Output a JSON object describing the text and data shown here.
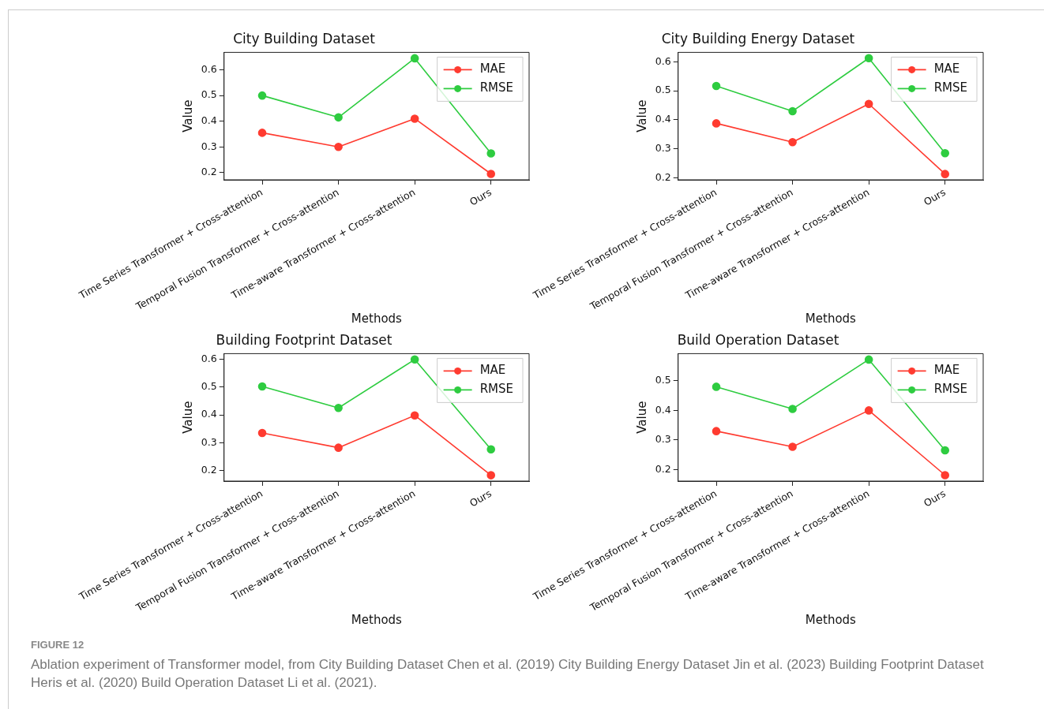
{
  "chart_data": [
    {
      "type": "line",
      "title": "City Building Dataset",
      "xlabel": "Methods",
      "ylabel": "Value",
      "categories": [
        "Time Series Transformer + Cross-attention",
        "Temporal Fusion Transformer + Cross-attention",
        "Time-aware Transformer + Cross-attention",
        "Ours"
      ],
      "series": [
        {
          "name": "MAE",
          "color": "#ff3b30",
          "values": [
            0.355,
            0.3,
            0.41,
            0.195
          ]
        },
        {
          "name": "RMSE",
          "color": "#2ecc40",
          "values": [
            0.5,
            0.415,
            0.645,
            0.275
          ]
        }
      ],
      "ylim": [
        0.172,
        0.668
      ],
      "yticks": [
        0.2,
        0.3,
        0.4,
        0.5,
        0.6
      ],
      "legend": "top right",
      "marker": "circle",
      "line_style": "solid"
    },
    {
      "type": "line",
      "title": "City Building Energy Dataset",
      "xlabel": "Methods",
      "ylabel": "Value",
      "categories": [
        "Time Series Transformer + Cross-attention",
        "Temporal Fusion Transformer + Cross-attention",
        "Time-aware Transformer + Cross-attention",
        "Ours"
      ],
      "series": [
        {
          "name": "MAE",
          "color": "#ff3b30",
          "values": [
            0.388,
            0.323,
            0.455,
            0.213
          ]
        },
        {
          "name": "RMSE",
          "color": "#2ecc40",
          "values": [
            0.517,
            0.43,
            0.613,
            0.285
          ]
        }
      ],
      "ylim": [
        0.193,
        0.633
      ],
      "yticks": [
        0.2,
        0.3,
        0.4,
        0.5,
        0.6
      ],
      "legend": "top right",
      "marker": "circle",
      "line_style": "solid"
    },
    {
      "type": "line",
      "title": "Building Footprint Dataset",
      "xlabel": "Methods",
      "ylabel": "Value",
      "categories": [
        "Time Series Transformer + Cross-attention",
        "Temporal Fusion Transformer + Cross-attention",
        "Time-aware Transformer + Cross-attention",
        "Ours"
      ],
      "series": [
        {
          "name": "MAE",
          "color": "#ff3b30",
          "values": [
            0.335,
            0.282,
            0.398,
            0.183
          ]
        },
        {
          "name": "RMSE",
          "color": "#2ecc40",
          "values": [
            0.502,
            0.425,
            0.599,
            0.276
          ]
        }
      ],
      "ylim": [
        0.162,
        0.62
      ],
      "yticks": [
        0.2,
        0.3,
        0.4,
        0.5,
        0.6
      ],
      "legend": "top right",
      "marker": "circle",
      "line_style": "solid"
    },
    {
      "type": "line",
      "title": "Build Operation Dataset",
      "xlabel": "Methods",
      "ylabel": "Value",
      "categories": [
        "Time Series Transformer + Cross-attention",
        "Temporal Fusion Transformer + Cross-attention",
        "Time-aware Transformer + Cross-attention",
        "Ours"
      ],
      "series": [
        {
          "name": "MAE",
          "color": "#ff3b30",
          "values": [
            0.33,
            0.277,
            0.4,
            0.181
          ]
        },
        {
          "name": "RMSE",
          "color": "#2ecc40",
          "values": [
            0.48,
            0.405,
            0.572,
            0.265
          ]
        }
      ],
      "ylim": [
        0.161,
        0.592
      ],
      "yticks": [
        0.2,
        0.3,
        0.4,
        0.5
      ],
      "legend": "top right",
      "marker": "circle",
      "line_style": "solid",
      "annotations": [
        "FIGURE 12",
        "Ablation experiment of Transformer model, from City Building Dataset Chen et al. (2019) City Building Energy Dataset Jin et al. (2023) Building Footprint Dataset Heris et al. (2020) Build Operation Dataset Li et al. (2021)."
      ]
    }
  ]
}
